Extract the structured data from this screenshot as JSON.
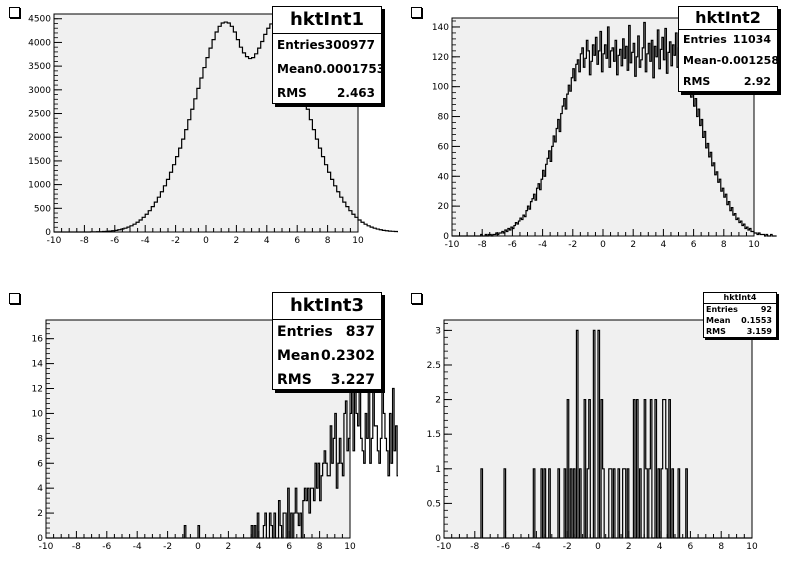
{
  "chart_data": [
    {
      "type": "histogram",
      "title": "hktInt1",
      "stats": {
        "entries_label": "Entries",
        "entries": "300977",
        "mean_label": "Mean",
        "mean": "0.0001753",
        "rms_label": "RMS",
        "rms": "2.463"
      },
      "xlim": [
        -10,
        10
      ],
      "ylim": [
        0,
        4600
      ],
      "xticks": [
        -10,
        -8,
        -6,
        -4,
        -2,
        0,
        2,
        4,
        6,
        8,
        10
      ],
      "yticks": [
        0,
        500,
        1000,
        1500,
        2000,
        2500,
        3000,
        3500,
        4000,
        4500
      ],
      "bin_width": 0.2,
      "bin_start": -10,
      "values": [
        0,
        0,
        0,
        0,
        0,
        0,
        0,
        0,
        0,
        0,
        0,
        0,
        2,
        3,
        5,
        7,
        10,
        14,
        19,
        26,
        35,
        47,
        62,
        80,
        103,
        131,
        165,
        206,
        254,
        310,
        375,
        450,
        535,
        630,
        735,
        850,
        975,
        1110,
        1260,
        1420,
        1590,
        1770,
        1960,
        2160,
        2370,
        2590,
        2810,
        3030,
        3250,
        3470,
        3680,
        3880,
        4060,
        4220,
        4340,
        4410,
        4430,
        4410,
        4340,
        4220,
        4060,
        3900,
        3780,
        3700,
        3660,
        3680,
        3760,
        3880,
        4020,
        4170,
        4300,
        4390,
        4430,
        4410,
        4340,
        4220,
        4060,
        3880,
        3680,
        3470,
        3250,
        3030,
        2810,
        2590,
        2370,
        2160,
        1960,
        1770,
        1590,
        1420,
        1260,
        1110,
        975,
        850,
        735,
        630,
        535,
        450,
        375,
        310,
        254,
        206,
        165,
        131,
        103,
        80,
        62,
        47,
        35,
        26,
        19,
        14,
        10,
        7,
        5,
        3,
        2,
        0,
        0,
        0,
        0,
        0,
        0,
        0,
        0,
        0,
        0,
        0
      ]
    },
    {
      "type": "histogram",
      "title": "hktInt2",
      "stats": {
        "entries_label": "Entries",
        "entries": "11034",
        "mean_label": "Mean",
        "mean": "-0.001258",
        "rms_label": "RMS",
        "rms": "2.92"
      },
      "xlim": [
        -10,
        10
      ],
      "ylim": [
        0,
        146
      ],
      "xticks": [
        -10,
        -8,
        -6,
        -4,
        -2,
        0,
        2,
        4,
        6,
        8,
        10
      ],
      "yticks": [
        0,
        20,
        40,
        60,
        80,
        100,
        120,
        140
      ],
      "bin_width": 0.1,
      "bin_start": -10,
      "values": [
        0,
        0,
        0,
        0,
        0,
        0,
        0,
        0,
        0,
        0,
        0,
        0,
        0,
        0,
        0,
        0,
        0,
        0,
        0,
        1,
        0,
        0,
        1,
        0,
        1,
        1,
        0,
        1,
        1,
        2,
        1,
        2,
        2,
        3,
        2,
        4,
        3,
        5,
        4,
        6,
        5,
        7,
        9,
        8,
        10,
        12,
        11,
        14,
        13,
        17,
        20,
        18,
        23,
        25,
        28,
        24,
        32,
        35,
        31,
        38,
        44,
        40,
        48,
        52,
        57,
        50,
        60,
        67,
        63,
        72,
        78,
        70,
        82,
        87,
        92,
        85,
        95,
        101,
        97,
        106,
        112,
        104,
        115,
        118,
        110,
        122,
        126,
        113,
        119,
        131,
        124,
        108,
        117,
        128,
        121,
        133,
        115,
        124,
        137,
        110,
        122,
        128,
        119,
        140,
        113,
        124,
        126,
        117,
        131,
        108,
        121,
        125,
        114,
        132,
        119,
        127,
        111,
        141,
        116,
        123,
        129,
        107,
        120,
        134,
        113,
        118,
        126,
        143,
        110,
        122,
        129,
        117,
        131,
        106,
        127,
        120,
        138,
        112,
        125,
        133,
        118,
        139,
        109,
        123,
        130,
        114,
        128,
        121,
        136,
        113,
        126,
        119,
        107,
        124,
        117,
        98,
        112,
        105,
        93,
        99,
        87,
        92,
        80,
        85,
        74,
        78,
        66,
        70,
        59,
        62,
        53,
        56,
        47,
        49,
        41,
        43,
        36,
        38,
        30,
        32,
        26,
        28,
        21,
        23,
        17,
        19,
        14,
        15,
        11,
        12,
        9,
        10,
        7,
        8,
        5,
        6,
        4,
        5,
        3,
        3,
        2,
        2,
        1,
        2,
        1,
        1,
        1,
        0,
        1,
        0,
        0,
        1,
        0,
        0,
        0
      ]
    },
    {
      "type": "histogram",
      "title": "hktInt3",
      "stats": {
        "entries_label": "Entries",
        "entries": "837",
        "mean_label": "Mean",
        "mean": "0.2302",
        "rms_label": "RMS",
        "rms": "3.227"
      },
      "xlim": [
        -10,
        10
      ],
      "ylim": [
        0,
        17.5
      ],
      "xticks": [
        -10,
        -8,
        -6,
        -4,
        -2,
        0,
        2,
        4,
        6,
        8,
        10
      ],
      "yticks": [
        0,
        2,
        4,
        6,
        8,
        10,
        12,
        14,
        16
      ],
      "bin_width": 0.1,
      "bin_start": -10,
      "values": [
        0,
        0,
        0,
        0,
        0,
        0,
        0,
        0,
        0,
        0,
        0,
        0,
        0,
        0,
        0,
        0,
        0,
        0,
        0,
        0,
        0,
        0,
        0,
        0,
        0,
        0,
        0,
        0,
        0,
        0,
        0,
        0,
        0,
        0,
        0,
        0,
        0,
        0,
        0,
        0,
        0,
        0,
        0,
        0,
        0,
        0,
        0,
        0,
        0,
        0,
        0,
        0,
        0,
        0,
        0,
        0,
        0,
        0,
        0,
        0,
        0,
        0,
        0,
        0,
        0,
        0,
        0,
        0,
        0,
        0,
        0,
        0,
        0,
        0,
        0,
        0,
        0,
        0,
        0,
        0,
        0,
        0,
        0,
        0,
        0,
        0,
        0,
        0,
        0,
        0,
        0,
        1,
        0,
        0,
        0,
        0,
        0,
        0,
        0,
        0,
        1,
        0,
        0,
        0,
        0,
        0,
        0,
        0,
        0,
        0,
        0,
        0,
        0,
        0,
        0,
        0,
        0,
        0,
        0,
        0,
        0,
        0,
        0,
        0,
        0,
        0,
        0,
        0,
        0,
        0,
        0,
        0,
        0,
        0,
        0,
        1,
        0,
        1,
        0,
        2,
        0,
        0,
        0,
        1,
        2,
        0,
        0,
        2,
        1,
        0,
        2,
        0,
        0,
        3,
        1,
        0,
        2,
        2,
        0,
        4,
        0,
        2,
        0,
        2,
        4,
        2,
        1,
        2,
        0,
        3,
        4,
        3,
        4,
        2,
        4,
        4,
        3,
        6,
        4,
        6,
        3,
        5,
        6,
        7,
        6,
        5,
        5,
        9,
        6,
        8,
        10,
        4,
        6,
        8,
        6,
        5,
        10,
        11,
        7,
        8,
        10,
        12,
        7,
        13,
        10,
        9,
        17,
        8,
        7,
        6,
        10,
        8,
        12,
        6,
        8,
        14,
        9,
        9,
        7,
        6,
        8,
        12,
        10,
        8,
        7,
        5,
        10,
        6,
        12,
        7,
        9,
        5,
        6,
        4,
        8,
        6,
        7,
        9,
        9,
        6,
        10,
        10,
        14,
        8,
        9,
        6,
        9,
        11,
        10,
        6,
        3,
        4,
        10,
        6,
        11,
        12,
        15,
        7,
        11,
        8,
        9,
        12,
        9,
        4,
        13,
        6,
        6,
        3,
        10,
        10,
        9,
        13,
        8,
        12,
        15,
        6,
        11,
        5,
        12,
        8,
        10,
        11,
        9,
        13,
        8,
        14,
        10,
        6,
        11,
        5,
        14,
        8,
        6,
        9,
        10,
        4,
        6,
        9,
        6,
        8,
        4,
        3,
        5,
        6,
        4,
        2,
        4,
        3,
        5,
        2,
        4,
        7,
        2,
        1,
        4,
        2,
        3,
        1,
        2,
        1,
        2,
        0,
        1,
        2,
        0,
        0,
        1,
        1,
        0,
        1,
        0,
        0,
        1,
        0,
        0,
        0,
        0,
        1,
        0,
        0,
        0,
        0,
        0
      ]
    },
    {
      "type": "histogram",
      "title": "hktInt4",
      "stats": {
        "entries_label": "Entries",
        "entries": "92",
        "mean_label": "Mean",
        "mean": "0.1553",
        "rms_label": "RMS",
        "rms": "3.159"
      },
      "xlim": [
        -10,
        10
      ],
      "ylim": [
        0,
        3.15
      ],
      "xticks": [
        -10,
        -8,
        -6,
        -4,
        -2,
        0,
        2,
        4,
        6,
        8,
        10
      ],
      "yticks": [
        0,
        0.5,
        1,
        1.5,
        2,
        2.5,
        3
      ],
      "yticklabels": [
        "0",
        "0.5",
        "1",
        "1.5",
        "2",
        "2.5",
        "3"
      ],
      "bin_width": 0.1,
      "bin_start": -10,
      "values": [
        0,
        0,
        0,
        0,
        0,
        0,
        0,
        0,
        0,
        0,
        0,
        0,
        0,
        0,
        0,
        0,
        0,
        0,
        0,
        0,
        0,
        0,
        0,
        0,
        1,
        0,
        0,
        0,
        0,
        0,
        0,
        0,
        0,
        0,
        0,
        0,
        0,
        0,
        0,
        1,
        0,
        0,
        0,
        0,
        0,
        0,
        0,
        0,
        0,
        0,
        0,
        0,
        0,
        0,
        0,
        0,
        0,
        0,
        1,
        0,
        0,
        0,
        0,
        1,
        0,
        1,
        0,
        0,
        1,
        0,
        0,
        0,
        0,
        0,
        1,
        0,
        0,
        0,
        1,
        0,
        2,
        0,
        1,
        0,
        1,
        0,
        3,
        0,
        1,
        0,
        0,
        2,
        0,
        1,
        2,
        0,
        0,
        3,
        0,
        0,
        3,
        0,
        2,
        1,
        0,
        0,
        0,
        1,
        1,
        0,
        1,
        0,
        0,
        1,
        0,
        0,
        1,
        1,
        0,
        1,
        0,
        0,
        0,
        2,
        0,
        2,
        0,
        1,
        0,
        0,
        2,
        1,
        0,
        1,
        2,
        0,
        0,
        2,
        0,
        1,
        0,
        1,
        2,
        2,
        1,
        0,
        2,
        0,
        1,
        0,
        0,
        0,
        1,
        0,
        0,
        0,
        0,
        1,
        0,
        0,
        0,
        0,
        0,
        0,
        0,
        0,
        0,
        0,
        0,
        0,
        0,
        0,
        0,
        0,
        0,
        0,
        0,
        0,
        0,
        0,
        0,
        0,
        0,
        0,
        0,
        0,
        0,
        0,
        0,
        0,
        0,
        0,
        0,
        0,
        0,
        0,
        0,
        0,
        0,
        0
      ]
    }
  ]
}
